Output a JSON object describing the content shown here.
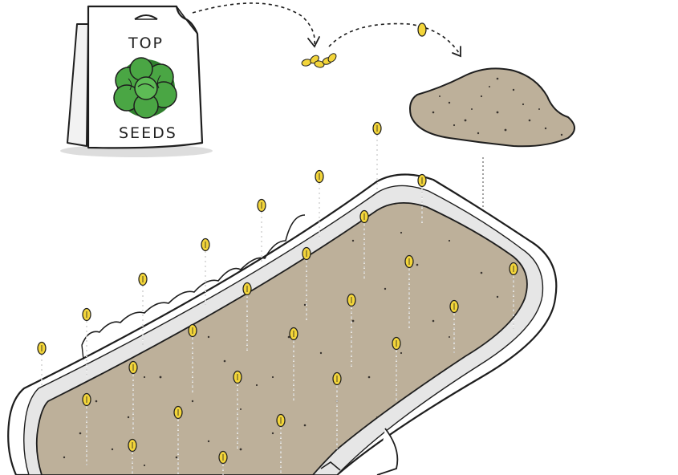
{
  "packet": {
    "top_label": "TOP",
    "bottom_label": "SEEDS",
    "leaf_color": "#3e9a3a",
    "icon": "lettuce-icon"
  },
  "colors": {
    "soil": "#bdb09a",
    "seed": "#f3d53a",
    "outline": "#1e1e1e",
    "tray": "#ffffff",
    "tray_rim_shade": "#e4e4e4",
    "shadow": "#dcdcdc"
  },
  "tray": {
    "seeds_in_tray_count": 28,
    "seeds_falling_outside_count": 2
  }
}
